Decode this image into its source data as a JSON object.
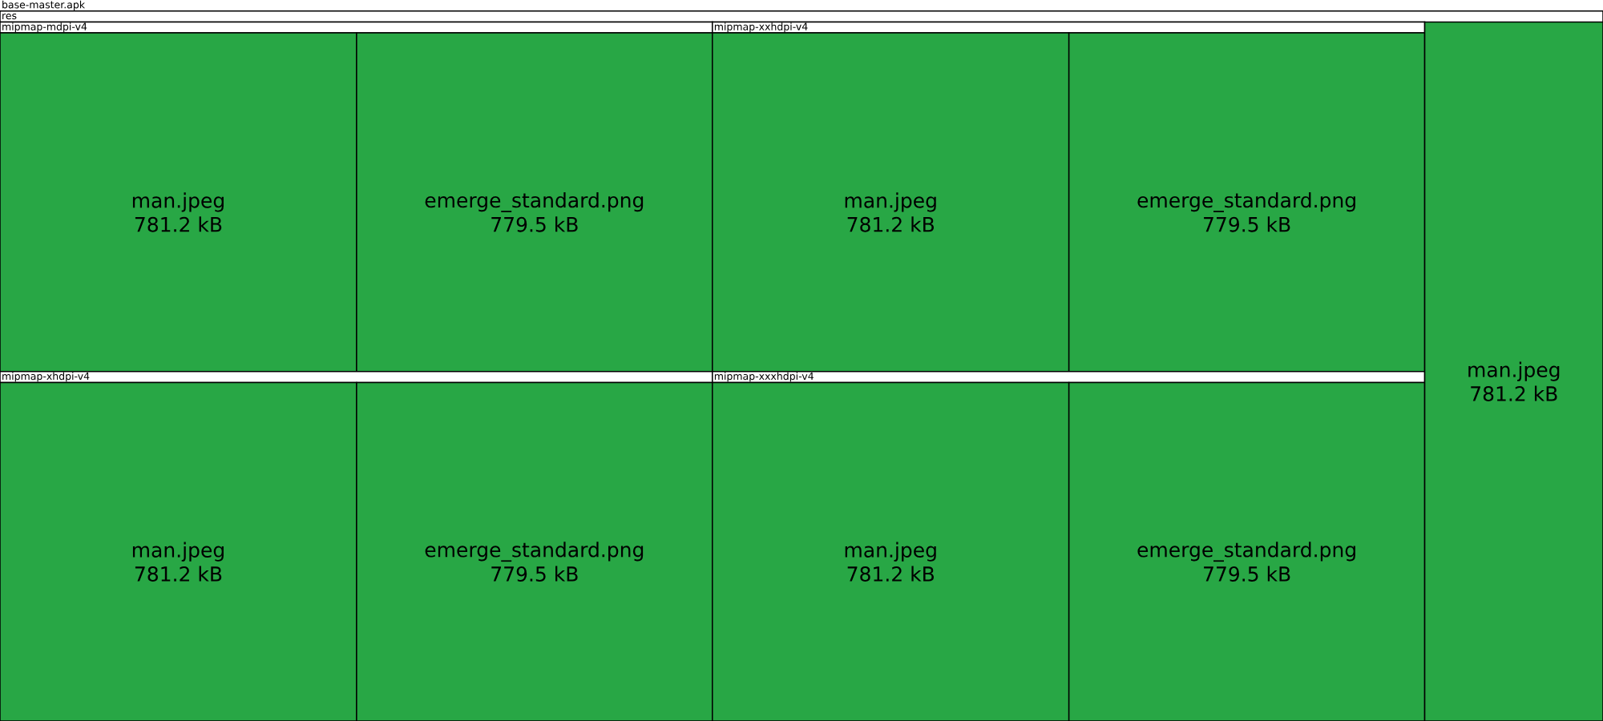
{
  "chart_data": {
    "type": "other",
    "title": "base-master.apk",
    "subtitle": "res",
    "categories": [
      "man.jpeg",
      "emerge_standard.png"
    ],
    "series": [
      {
        "name": "mipmap-mdpi-v4",
        "color": "#28a745",
        "values": [
          781.2,
          779.5
        ],
        "value_labels": [
          "781.2 kB",
          "779.5 kB"
        ]
      },
      {
        "name": "mipmap-xhdpi-v4",
        "color": "#28a745",
        "values": [
          781.2,
          779.5
        ],
        "value_labels": [
          "781.2 kB",
          "779.5 kB"
        ]
      },
      {
        "name": "mipmap-xxhdpi-v4",
        "color": "#28a745",
        "values": [
          781.2,
          779.5
        ],
        "value_labels": [
          "781.2 kB",
          "779.5 kB"
        ]
      },
      {
        "name": "mipmap-xxxhdpi-v4",
        "color": "#28a745",
        "values": [
          781.2,
          779.5
        ],
        "value_labels": [
          "781.2 kB",
          "779.5 kB"
        ]
      },
      {
        "color": "#28a745",
        "values": [
          781.2,
          null
        ],
        "value_labels": [
          "781.2 kB",
          null
        ]
      }
    ]
  }
}
